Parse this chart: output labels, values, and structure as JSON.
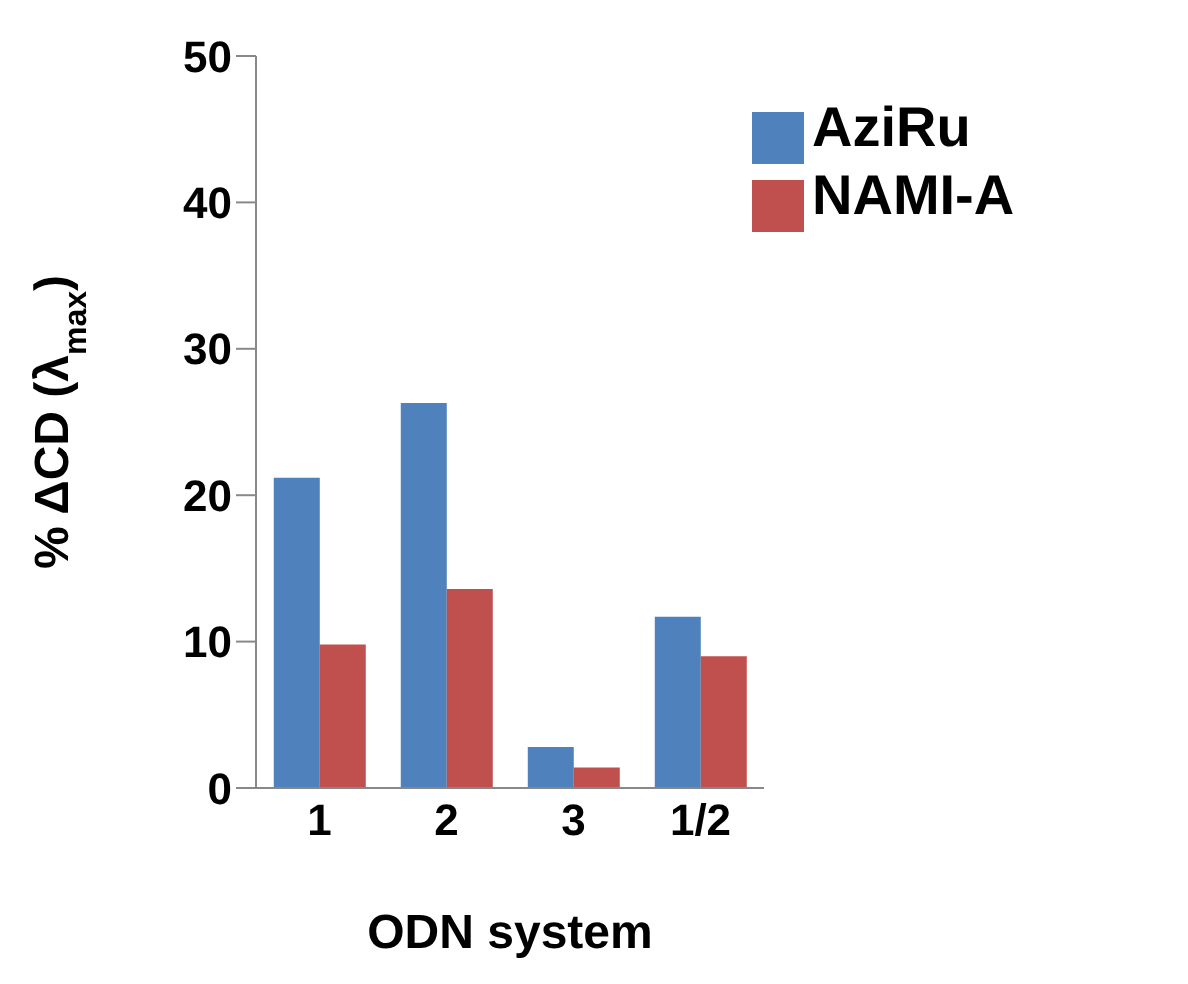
{
  "chart_data": {
    "type": "bar",
    "categories": [
      "1",
      "2",
      "3",
      "1/2"
    ],
    "series": [
      {
        "name": "AziRu",
        "color": "#4f81bd",
        "values": [
          21.2,
          26.3,
          2.8,
          11.7
        ]
      },
      {
        "name": "NAMI-A",
        "color": "#c0504d",
        "values": [
          9.8,
          13.6,
          1.4,
          9.0
        ]
      }
    ],
    "xlabel": "ODN system",
    "ylabel": "% ΔCD (λ$_{max}$)",
    "ylim": [
      0,
      50
    ],
    "yticks": [
      0,
      10,
      20,
      30,
      40,
      50
    ],
    "legend": "top right",
    "grid": false
  }
}
